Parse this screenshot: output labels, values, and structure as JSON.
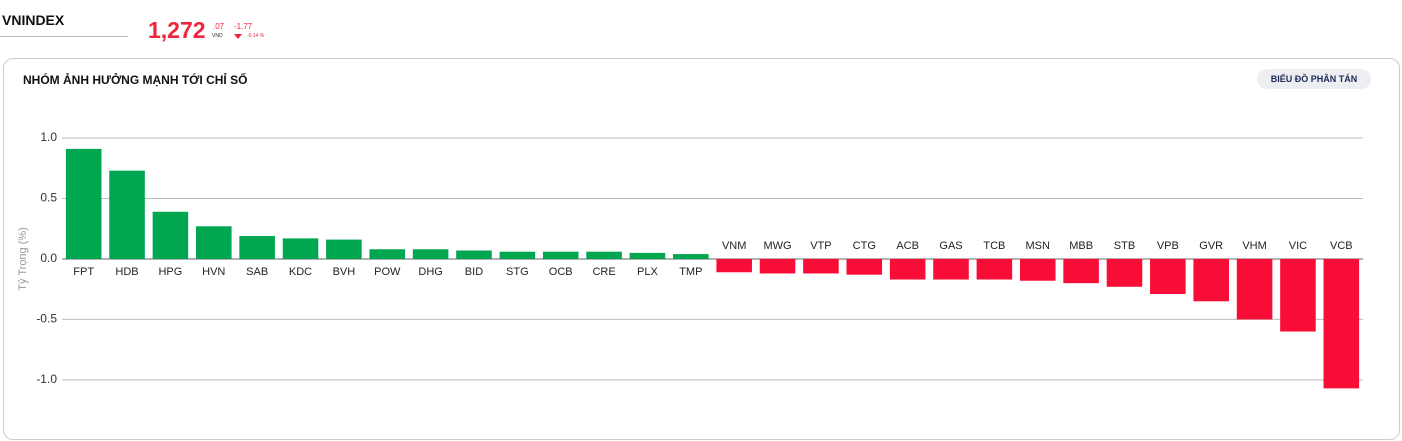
{
  "header": {
    "index": "VNINDEX",
    "price": "1,272",
    "price_decimal": ".07",
    "currency": "VND",
    "change": "-1.77",
    "change_pct": "-0.14 %"
  },
  "card": {
    "title": "NHÓM ẢNH HƯỞNG MẠNH TỚI CHỈ SỐ",
    "button": "BIỂU ĐỒ PHÂN TÁN"
  },
  "chart_data": {
    "type": "bar",
    "y_label": "Tỷ Trọng (%)",
    "categories": [
      "FPT",
      "HDB",
      "HPG",
      "HVN",
      "SAB",
      "KDC",
      "BVH",
      "POW",
      "DHG",
      "BID",
      "STG",
      "OCB",
      "CRE",
      "PLX",
      "TMP",
      "VNM",
      "MWG",
      "VTP",
      "CTG",
      "ACB",
      "GAS",
      "TCB",
      "MSN",
      "MBB",
      "STB",
      "VPB",
      "GVR",
      "VHM",
      "VIC",
      "VCB"
    ],
    "values": [
      0.91,
      0.73,
      0.39,
      0.27,
      0.19,
      0.17,
      0.16,
      0.08,
      0.08,
      0.07,
      0.06,
      0.06,
      0.06,
      0.05,
      0.04,
      -0.11,
      -0.12,
      -0.12,
      -0.13,
      -0.17,
      -0.17,
      -0.17,
      -0.18,
      -0.2,
      -0.23,
      -0.29,
      -0.35,
      -0.5,
      -0.6,
      -1.07
    ],
    "positive_color": "#00a650",
    "negative_color": "#f70d35",
    "ylim": [
      -1.1,
      1.0
    ],
    "yticks": [
      {
        "value": -1,
        "label": "-1.0"
      },
      -0.5,
      {
        "value": 0,
        "label": "0.0"
      },
      0.5,
      {
        "value": 1,
        "label": "1.0"
      }
    ],
    "grid": true
  }
}
